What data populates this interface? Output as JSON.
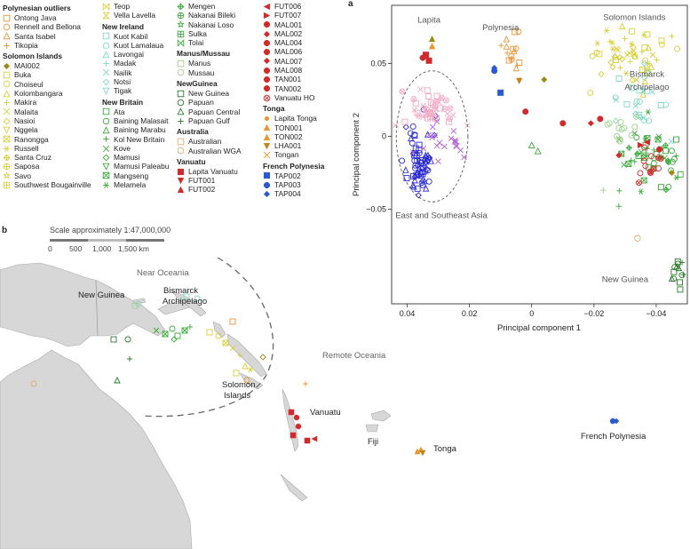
{
  "panel_labels": {
    "a": "a",
    "b": "b"
  },
  "legend": [
    {
      "col": 0,
      "groups": [
        {
          "title": "Polynesian outliers",
          "items": [
            {
              "label": "Ontong Java",
              "shape": "square-open",
              "color": "#e8963a"
            },
            {
              "label": "Rennell and Bellona",
              "shape": "circle-open",
              "color": "#e8963a"
            },
            {
              "label": "Santa Isabel",
              "shape": "triangle-open",
              "color": "#e8963a"
            },
            {
              "label": "Tikopia",
              "shape": "plus",
              "color": "#e8963a"
            }
          ]
        },
        {
          "title": "Solomon Islands",
          "items": [
            {
              "label": "MAI002",
              "shape": "diamond-filled",
              "color": "#9a8a1a"
            },
            {
              "label": "Buka",
              "shape": "square-open",
              "color": "#d8cf3a"
            },
            {
              "label": "Choiseul",
              "shape": "circle-open",
              "color": "#d8cf3a"
            },
            {
              "label": "Kolombangara",
              "shape": "triangle-open",
              "color": "#d8cf3a"
            },
            {
              "label": "Makira",
              "shape": "plus",
              "color": "#d8cf3a"
            },
            {
              "label": "Malaita",
              "shape": "cross",
              "color": "#d8cf3a"
            },
            {
              "label": "Nasioi",
              "shape": "diamond-open",
              "color": "#d8cf3a"
            },
            {
              "label": "Nggela",
              "shape": "triangle-down-open",
              "color": "#d8cf3a"
            },
            {
              "label": "Ranongga",
              "shape": "square-x",
              "color": "#d8cf3a"
            },
            {
              "label": "Russell",
              "shape": "asterisk",
              "color": "#d8cf3a"
            },
            {
              "label": "Santa Cruz",
              "shape": "diamond-plus",
              "color": "#d8cf3a"
            },
            {
              "label": "Saposa",
              "shape": "circle-plus",
              "color": "#d8cf3a"
            },
            {
              "label": "Savo",
              "shape": "star-open",
              "color": "#d8cf3a"
            },
            {
              "label": "Southwest Bougainville",
              "shape": "square-plus",
              "color": "#d8cf3a"
            }
          ]
        }
      ]
    },
    {
      "col": 1,
      "groups": [
        {
          "title": "",
          "items": [
            {
              "label": "Teop",
              "shape": "bowtie",
              "color": "#d8cf3a"
            },
            {
              "label": "Vella Lavella",
              "shape": "hourglass",
              "color": "#d8cf3a"
            }
          ]
        },
        {
          "title": "New Ireland",
          "items": [
            {
              "label": "Kuot Kabil",
              "shape": "square-open",
              "color": "#7fd9c4"
            },
            {
              "label": "Kuot Lamalaua",
              "shape": "circle-open",
              "color": "#7fd9c4"
            },
            {
              "label": "Lavongai",
              "shape": "triangle-open",
              "color": "#7fd9c4"
            },
            {
              "label": "Madak",
              "shape": "plus",
              "color": "#7fd9c4"
            },
            {
              "label": "Nailik",
              "shape": "cross",
              "color": "#7fd9c4"
            },
            {
              "label": "Notsi",
              "shape": "diamond-open",
              "color": "#7fd9c4"
            },
            {
              "label": "Tigak",
              "shape": "triangle-down-open",
              "color": "#7fd9c4"
            }
          ]
        },
        {
          "title": "New Britain",
          "items": [
            {
              "label": "Ata",
              "shape": "square-open",
              "color": "#3aaa3a"
            },
            {
              "label": "Baining Malasait",
              "shape": "circle-open",
              "color": "#3aaa3a"
            },
            {
              "label": "Baining Marabu",
              "shape": "triangle-open",
              "color": "#3aaa3a"
            },
            {
              "label": "Kol New Britain",
              "shape": "plus",
              "color": "#3aaa3a"
            },
            {
              "label": "Kove",
              "shape": "cross",
              "color": "#3aaa3a"
            },
            {
              "label": "Mamusi",
              "shape": "diamond-open",
              "color": "#3aaa3a"
            },
            {
              "label": "Mamusi Paleabu",
              "shape": "triangle-down-open",
              "color": "#3aaa3a"
            },
            {
              "label": "Mangseng",
              "shape": "square-x",
              "color": "#3aaa3a"
            },
            {
              "label": "Melamela",
              "shape": "asterisk",
              "color": "#3aaa3a"
            }
          ]
        }
      ]
    },
    {
      "col": 2,
      "groups": [
        {
          "title": "",
          "items": [
            {
              "label": "Mengen",
              "shape": "diamond-plus",
              "color": "#3aaa3a"
            },
            {
              "label": "Nakanai Bileki",
              "shape": "circle-plus",
              "color": "#3aaa3a"
            },
            {
              "label": "Nakanai Loso",
              "shape": "star-open",
              "color": "#3aaa3a"
            },
            {
              "label": "Sulka",
              "shape": "square-plus",
              "color": "#3aaa3a"
            },
            {
              "label": "Tolai",
              "shape": "bowtie",
              "color": "#3aaa3a"
            }
          ]
        },
        {
          "title": "Manus/Mussau",
          "items": [
            {
              "label": "Manus",
              "shape": "square-open",
              "color": "#9fcf8a"
            },
            {
              "label": "Mussau",
              "shape": "circle-open",
              "color": "#9fcf8a"
            }
          ]
        },
        {
          "title": "NewGuinea",
          "items": [
            {
              "label": "New Guinea",
              "shape": "square-open",
              "color": "#2a7a2a"
            },
            {
              "label": "Papuan",
              "shape": "circle-open",
              "color": "#2a7a2a"
            },
            {
              "label": "Papuan Central",
              "shape": "triangle-open",
              "color": "#2a7a2a"
            },
            {
              "label": "Papuan Gulf",
              "shape": "plus",
              "color": "#2a7a2a"
            }
          ]
        },
        {
          "title": "Australia",
          "items": [
            {
              "label": "Australian",
              "shape": "square-open",
              "color": "#d8b070"
            },
            {
              "label": "Australian WGA",
              "shape": "circle-open",
              "color": "#d8b070"
            }
          ]
        },
        {
          "title": "Vanuatu",
          "items": [
            {
              "label": "Lapita Vanuatu",
              "shape": "square-filled",
              "color": "#d22a2a"
            },
            {
              "label": "FUT001",
              "shape": "triangle-down-filled",
              "color": "#d22a2a"
            },
            {
              "label": "FUT002",
              "shape": "triangle-filled",
              "color": "#d22a2a"
            }
          ]
        }
      ]
    },
    {
      "col": 3,
      "groups": [
        {
          "title": "",
          "items": [
            {
              "label": "FUT006",
              "shape": "triangle-left-filled",
              "color": "#d22a2a"
            },
            {
              "label": "FUT007",
              "shape": "triangle-right-filled",
              "color": "#d22a2a"
            },
            {
              "label": "MAL001",
              "shape": "circle-filled",
              "color": "#d22a2a"
            },
            {
              "label": "MAL002",
              "shape": "diamond-filled",
              "color": "#d22a2a"
            },
            {
              "label": "MAL004",
              "shape": "circle-filled",
              "color": "#d22a2a"
            },
            {
              "label": "MAL006",
              "shape": "circle-filled",
              "color": "#d22a2a"
            },
            {
              "label": "MAL007",
              "shape": "diamond-filled",
              "color": "#d22a2a"
            },
            {
              "label": "MAL008",
              "shape": "circle-filled",
              "color": "#d22a2a"
            },
            {
              "label": "TAN001",
              "shape": "circle-filled",
              "color": "#d22a2a"
            },
            {
              "label": "TAN002",
              "shape": "circle-filled",
              "color": "#d22a2a"
            },
            {
              "label": "Vanuatu HO",
              "shape": "circle-x",
              "color": "#d22a2a"
            }
          ]
        },
        {
          "title": "Tonga",
          "items": [
            {
              "label": "Lapita Tonga",
              "shape": "dot",
              "color": "#e8962a"
            },
            {
              "label": "TON001",
              "shape": "triangle-filled",
              "color": "#e8962a"
            },
            {
              "label": "TON002",
              "shape": "triangle-filled",
              "color": "#e8962a"
            },
            {
              "label": "LHA001",
              "shape": "triangle-down-filled",
              "color": "#c8821a"
            },
            {
              "label": "Tongan",
              "shape": "cross",
              "color": "#e8962a"
            }
          ]
        },
        {
          "title": "French Polynesia",
          "items": [
            {
              "label": "TAP002",
              "shape": "square-filled",
              "color": "#2a5ad2"
            },
            {
              "label": "TAP003",
              "shape": "circle-filled",
              "color": "#2a5ad2"
            },
            {
              "label": "TAP004",
              "shape": "diamond-filled",
              "color": "#2a5ad2"
            }
          ]
        }
      ]
    }
  ],
  "chart_data": {
    "type": "scatter",
    "xlabel": "Principal component 1",
    "ylabel": "Principal component 2",
    "xlim": [
      0.045,
      -0.05
    ],
    "ylim": [
      -0.115,
      0.09
    ],
    "xticks": [
      0.04,
      0.02,
      0,
      -0.02,
      -0.04
    ],
    "xtick_labels": [
      "0.04",
      "0.02",
      "0",
      "−0.02",
      "−0.04"
    ],
    "yticks": [
      0.05,
      0,
      -0.05
    ],
    "ytick_labels": [
      "0.05",
      "0",
      "−0.05"
    ],
    "grid": false,
    "annotations": [
      {
        "text": "Lapita",
        "x": 0.033,
        "y": 0.078
      },
      {
        "text": "Polynesia",
        "x": 0.01,
        "y": 0.073
      },
      {
        "text": "Solomon Islands",
        "x": -0.033,
        "y": 0.08
      },
      {
        "text": "Bismarck",
        "x": -0.037,
        "y": 0.041
      },
      {
        "text": "Archipelago",
        "x": -0.037,
        "y": 0.032
      },
      {
        "text": "East and Southeast Asia",
        "x": 0.029,
        "y": -0.056
      },
      {
        "text": "New Guinea",
        "x": -0.03,
        "y": -0.1
      }
    ],
    "ellipse": {
      "cx": 0.032,
      "cy": 0.0,
      "rx": 0.0115,
      "ry": 0.045
    },
    "clusters": [
      {
        "name": "East and Southeast Asia",
        "color": "#2a2ad2",
        "shape": "square-open",
        "cx": 0.036,
        "cy": -0.018,
        "sx": 0.0025,
        "sy": 0.011,
        "n": 70
      },
      {
        "name": "East and Southeast Asia (pink)",
        "color": "#f2a8c2",
        "shape": "circle-x",
        "cx": 0.031,
        "cy": 0.018,
        "sx": 0.0055,
        "sy": 0.007,
        "n": 45
      },
      {
        "name": "East and Southeast Asia (violet)",
        "color": "#b460d8",
        "shape": "cross",
        "cx": 0.029,
        "cy": -0.004,
        "sx": 0.005,
        "sy": 0.008,
        "n": 20
      },
      {
        "name": "Solomon Islands",
        "color": "#d8cf3a",
        "shape": "plus",
        "cx": -0.031,
        "cy": 0.056,
        "sx": 0.007,
        "sy": 0.011,
        "n": 55
      },
      {
        "name": "New Ireland",
        "color": "#7fd9c4",
        "shape": "circle-open",
        "cx": -0.034,
        "cy": 0.028,
        "sx": 0.004,
        "sy": 0.009,
        "n": 25
      },
      {
        "name": "New Britain",
        "color": "#3aaa3a",
        "shape": "square-x",
        "cx": -0.039,
        "cy": -0.014,
        "sx": 0.006,
        "sy": 0.01,
        "n": 55
      },
      {
        "name": "Manus/Mussau",
        "color": "#9fcf8a",
        "shape": "circle-open",
        "cx": -0.028,
        "cy": 0.004,
        "sx": 0.003,
        "sy": 0.005,
        "n": 12
      },
      {
        "name": "New Guinea",
        "color": "#2a7a2a",
        "shape": "square-open",
        "cx": -0.047,
        "cy": -0.092,
        "sx": 0.0012,
        "sy": 0.005,
        "n": 14
      },
      {
        "name": "Polynesian outliers",
        "color": "#e8963a",
        "shape": "square-open",
        "cx": 0.006,
        "cy": 0.058,
        "sx": 0.002,
        "sy": 0.007,
        "n": 16
      },
      {
        "name": "Vanuatu HO",
        "color": "#d22a2a",
        "shape": "circle-x",
        "cx": -0.04,
        "cy": -0.018,
        "sx": 0.005,
        "sy": 0.006,
        "n": 12
      }
    ],
    "points": [
      {
        "x": 0.034,
        "y": 0.056,
        "shape": "square-filled",
        "color": "#d22a2a"
      },
      {
        "x": 0.033,
        "y": 0.052,
        "shape": "square-filled",
        "color": "#d22a2a"
      },
      {
        "x": 0.035,
        "y": 0.054,
        "shape": "circle-filled",
        "color": "#d22a2a"
      },
      {
        "x": 0.032,
        "y": 0.062,
        "shape": "triangle-filled",
        "color": "#e8962a"
      },
      {
        "x": 0.032,
        "y": 0.067,
        "shape": "triangle-filled",
        "color": "#9a8a1a"
      },
      {
        "x": 0.012,
        "y": 0.047,
        "shape": "diamond-filled",
        "color": "#2a5ad2"
      },
      {
        "x": 0.012,
        "y": 0.045,
        "shape": "circle-filled",
        "color": "#2a5ad2"
      },
      {
        "x": 0.01,
        "y": 0.03,
        "shape": "square-filled",
        "color": "#2a5ad2"
      },
      {
        "x": 0.004,
        "y": 0.038,
        "shape": "triangle-down-filled",
        "color": "#c8821a"
      },
      {
        "x": -0.004,
        "y": 0.039,
        "shape": "diamond-filled",
        "color": "#9a8a1a"
      },
      {
        "x": 0.002,
        "y": 0.017,
        "shape": "circle-filled",
        "color": "#d22a2a"
      },
      {
        "x": -0.01,
        "y": 0.009,
        "shape": "circle-filled",
        "color": "#d22a2a"
      },
      {
        "x": -0.019,
        "y": 0.009,
        "shape": "diamond-filled",
        "color": "#d22a2a"
      },
      {
        "x": -0.022,
        "y": 0.012,
        "shape": "circle-filled",
        "color": "#d22a2a"
      },
      {
        "x": -0.035,
        "y": -0.006,
        "shape": "triangle-right-filled",
        "color": "#d22a2a"
      },
      {
        "x": -0.037,
        "y": -0.004,
        "shape": "triangle-left-filled",
        "color": "#d22a2a"
      },
      {
        "x": -0.045,
        "y": -0.025,
        "shape": "diamond-filled",
        "color": "#9a8a1a"
      },
      {
        "x": -0.028,
        "y": -0.013,
        "shape": "diamond-filled",
        "color": "#d22a2a"
      },
      {
        "x": -0.041,
        "y": -0.009,
        "shape": "circle-filled",
        "color": "#d22a2a"
      },
      {
        "x": 0.0,
        "y": -0.006,
        "shape": "triangle-open",
        "color": "#3aaa3a"
      },
      {
        "x": -0.002,
        "y": -0.01,
        "shape": "triangle-open",
        "color": "#3aaa3a"
      },
      {
        "x": -0.028,
        "y": -0.048,
        "shape": "plus",
        "color": "#3aaa3a"
      },
      {
        "x": -0.023,
        "y": -0.037,
        "shape": "plus",
        "color": "#9fcf8a"
      },
      {
        "x": -0.034,
        "y": -0.07,
        "shape": "circle-open",
        "color": "#d8b070"
      }
    ]
  },
  "map": {
    "scale_text": "Scale approximately 1:47,000,000",
    "scale_ticks": [
      "0",
      "500",
      "1,000",
      "1,500 km"
    ],
    "labels": {
      "near_oceania": "Near Oceania",
      "new_guinea": "New Guinea",
      "bismarck_1": "Bismarck",
      "bismarck_2": "Archipelago",
      "solomon_1": "Solomon",
      "solomon_2": "Islands",
      "remote_oceania": "Remote Oceania",
      "vanuatu": "Vanuatu",
      "fiji": "Fiji",
      "tonga": "Tonga",
      "french_polynesia": "French Polynesia"
    }
  }
}
